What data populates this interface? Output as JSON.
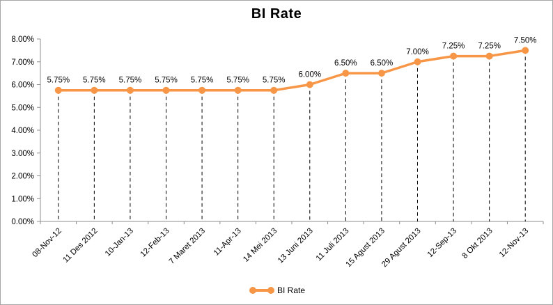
{
  "chart_data": {
    "type": "line",
    "title": "BI Rate",
    "categories": [
      "08-Nov-12",
      "11 Des 2012",
      "10-Jan-13",
      "12-Feb-13",
      "7 Maret 2013",
      "11-Apr-13",
      "14 Mei 2013",
      "13 Juni 2013",
      "11 Juli 2013",
      "15 Agust 2013",
      "29 Agust 2013",
      "12-Sep-13",
      "8 Okt 2013",
      "12-Nov-13"
    ],
    "series": [
      {
        "name": "BI Rate",
        "values": [
          5.75,
          5.75,
          5.75,
          5.75,
          5.75,
          5.75,
          5.75,
          6.0,
          6.5,
          6.5,
          7.0,
          7.25,
          7.25,
          7.5
        ]
      }
    ],
    "data_labels": [
      "5.75%",
      "5.75%",
      "5.75%",
      "5.75%",
      "5.75%",
      "5.75%",
      "5.75%",
      "6.00%",
      "6.50%",
      "6.50%",
      "7.00%",
      "7.25%",
      "7.25%",
      "7.50%"
    ],
    "ylim": [
      0,
      8
    ],
    "ytick_values": [
      0,
      1,
      2,
      3,
      4,
      5,
      6,
      7,
      8
    ],
    "ytick_labels": [
      "0.00%",
      "1.00%",
      "2.00%",
      "3.00%",
      "4.00%",
      "5.00%",
      "6.00%",
      "7.00%",
      "8.00%"
    ],
    "xlabel": "",
    "ylabel": "",
    "grid": false,
    "drop_lines": "dashed",
    "legend": {
      "position": "bottom",
      "label": "BI Rate"
    },
    "colors": {
      "series": "#F79646",
      "axis": "#8c8c8c",
      "text": "#000000",
      "drop_line": "#000000",
      "border": "#a6a6a6"
    }
  }
}
